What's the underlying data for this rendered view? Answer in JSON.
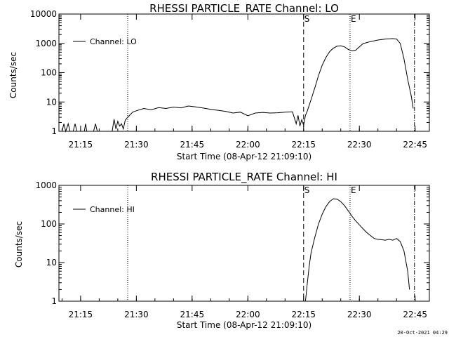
{
  "footer": "20-Oct-2021 04:29",
  "chart_data": [
    {
      "type": "line",
      "title": "RHESSI PARTICLE_RATE Channel: LO",
      "xlabel": "Start Time (08-Apr-12 21:09:10)",
      "ylabel": "Counts/sec",
      "yscale": "log",
      "ylim": [
        1,
        10000
      ],
      "xlim": [
        "21:09:10",
        "22:48:50"
      ],
      "x_ticks": [
        "21:15",
        "21:30",
        "21:45",
        "22:00",
        "22:15",
        "22:30",
        "22:45"
      ],
      "y_ticks": [
        "1",
        "10",
        "100",
        "1000",
        "10000"
      ],
      "legend": {
        "position": "top-left",
        "entries": [
          "Channel: LO"
        ]
      },
      "markers": [
        {
          "time": "22:15:00",
          "style": "dashed",
          "label": "S"
        },
        {
          "time": "22:27:30",
          "style": "dotted",
          "label": "E"
        },
        {
          "time": "21:27:40",
          "style": "dotted",
          "label": ""
        },
        {
          "time": "22:44:50",
          "style": "dashdot",
          "label": ""
        }
      ],
      "series": [
        {
          "name": "Channel: LO",
          "segments": [
            {
              "x": [
                "21:10:00",
                "21:10:30",
                "21:11:00",
                "21:11:40",
                "21:12:10",
                "21:13:00",
                "21:13:30",
                "21:14:00",
                "21:16:00",
                "21:16:20",
                "21:16:40",
                "21:18:30",
                "21:19:00",
                "21:19:30"
              ],
              "y": [
                1,
                1.8,
                1,
                1.8,
                1,
                1,
                1.8,
                1,
                1,
                1.8,
                1,
                1,
                1.8,
                1
              ]
            },
            {
              "x": [
                "21:23:30",
                "21:24:00",
                "21:24:30",
                "21:25:00",
                "21:25:30",
                "21:26:00",
                "21:26:30",
                "21:27:00",
                "21:27:40",
                "21:29:00",
                "21:30:00",
                "21:32:00",
                "21:34:00",
                "21:36:00",
                "21:38:00",
                "21:40:00",
                "21:42:00",
                "21:44:00",
                "21:46:00",
                "21:48:00",
                "21:50:00",
                "21:52:00",
                "21:54:00",
                "21:56:00",
                "21:58:00",
                "22:00:00",
                "22:02:00",
                "22:04:00",
                "22:06:00",
                "22:08:00",
                "22:10:00",
                "22:12:00",
                "22:13:00",
                "22:13:30",
                "22:14:00",
                "22:14:30",
                "22:15:00",
                "22:15:30",
                "22:16:00",
                "22:17:00",
                "22:18:00",
                "22:19:00",
                "22:20:00",
                "22:21:00",
                "22:22:00",
                "22:23:00",
                "22:24:00",
                "22:25:00",
                "22:26:00",
                "22:27:00",
                "22:28:00",
                "22:29:00",
                "22:30:00",
                "22:31:00",
                "22:33:00",
                "22:35:00",
                "22:37:00",
                "22:39:00",
                "22:40:00",
                "22:41:00",
                "22:42:00",
                "22:43:00",
                "22:44:00",
                "22:44:30"
              ],
              "y": [
                1,
                2.6,
                1.2,
                2.2,
                1.5,
                1.8,
                1.2,
                2.4,
                3,
                4.5,
                5,
                6,
                5.4,
                6.4,
                6,
                6.7,
                6.3,
                7.3,
                6.8,
                6.2,
                5.6,
                5.2,
                4.8,
                4.2,
                4.5,
                3.4,
                4.2,
                4.4,
                4.2,
                4.3,
                4.5,
                4.6,
                1.8,
                3.5,
                1.5,
                2.5,
                1.6,
                3.5,
                5,
                12,
                30,
                80,
                180,
                330,
                520,
                680,
                800,
                820,
                760,
                620,
                560,
                580,
                760,
                980,
                1150,
                1300,
                1400,
                1450,
                1400,
                1000,
                300,
                60,
                15,
                6
              ]
            }
          ]
        }
      ]
    },
    {
      "type": "line",
      "title": "RHESSI PARTICLE_RATE Channel: HI",
      "xlabel": "Start Time (08-Apr-12 21:09:10)",
      "ylabel": "Counts/sec",
      "yscale": "log",
      "ylim": [
        1,
        1000
      ],
      "xlim": [
        "21:09:10",
        "22:48:50"
      ],
      "x_ticks": [
        "21:15",
        "21:30",
        "21:45",
        "22:00",
        "22:15",
        "22:30",
        "22:45"
      ],
      "y_ticks": [
        "1",
        "10",
        "100",
        "1000"
      ],
      "legend": {
        "position": "top-left",
        "entries": [
          "Channel: HI"
        ]
      },
      "markers": [
        {
          "time": "22:15:00",
          "style": "dashed",
          "label": "S"
        },
        {
          "time": "22:27:30",
          "style": "dotted",
          "label": "E"
        },
        {
          "time": "21:27:40",
          "style": "dotted",
          "label": ""
        },
        {
          "time": "22:44:50",
          "style": "dashdot",
          "label": ""
        }
      ],
      "series": [
        {
          "name": "Channel: HI",
          "segments": [
            {
              "x": [
                "22:15:30",
                "22:16:00",
                "22:16:30",
                "22:17:00",
                "22:18:00",
                "22:19:00",
                "22:20:00",
                "22:21:00",
                "22:22:00",
                "22:23:00",
                "22:24:00",
                "22:25:00",
                "22:26:00",
                "22:27:00",
                "22:28:00",
                "22:29:00",
                "22:30:00",
                "22:31:00",
                "22:32:00",
                "22:33:00",
                "22:34:00",
                "22:35:00",
                "22:36:00",
                "22:37:00",
                "22:38:00",
                "22:39:00",
                "22:40:00",
                "22:41:00",
                "22:42:00",
                "22:43:00",
                "22:43:30"
              ],
              "y": [
                1,
                3,
                8,
                18,
                45,
                100,
                180,
                280,
                380,
                450,
                440,
                380,
                300,
                220,
                160,
                120,
                95,
                75,
                60,
                50,
                42,
                40,
                39,
                38,
                40,
                38,
                42,
                35,
                20,
                6,
                2
              ]
            }
          ]
        }
      ]
    }
  ]
}
